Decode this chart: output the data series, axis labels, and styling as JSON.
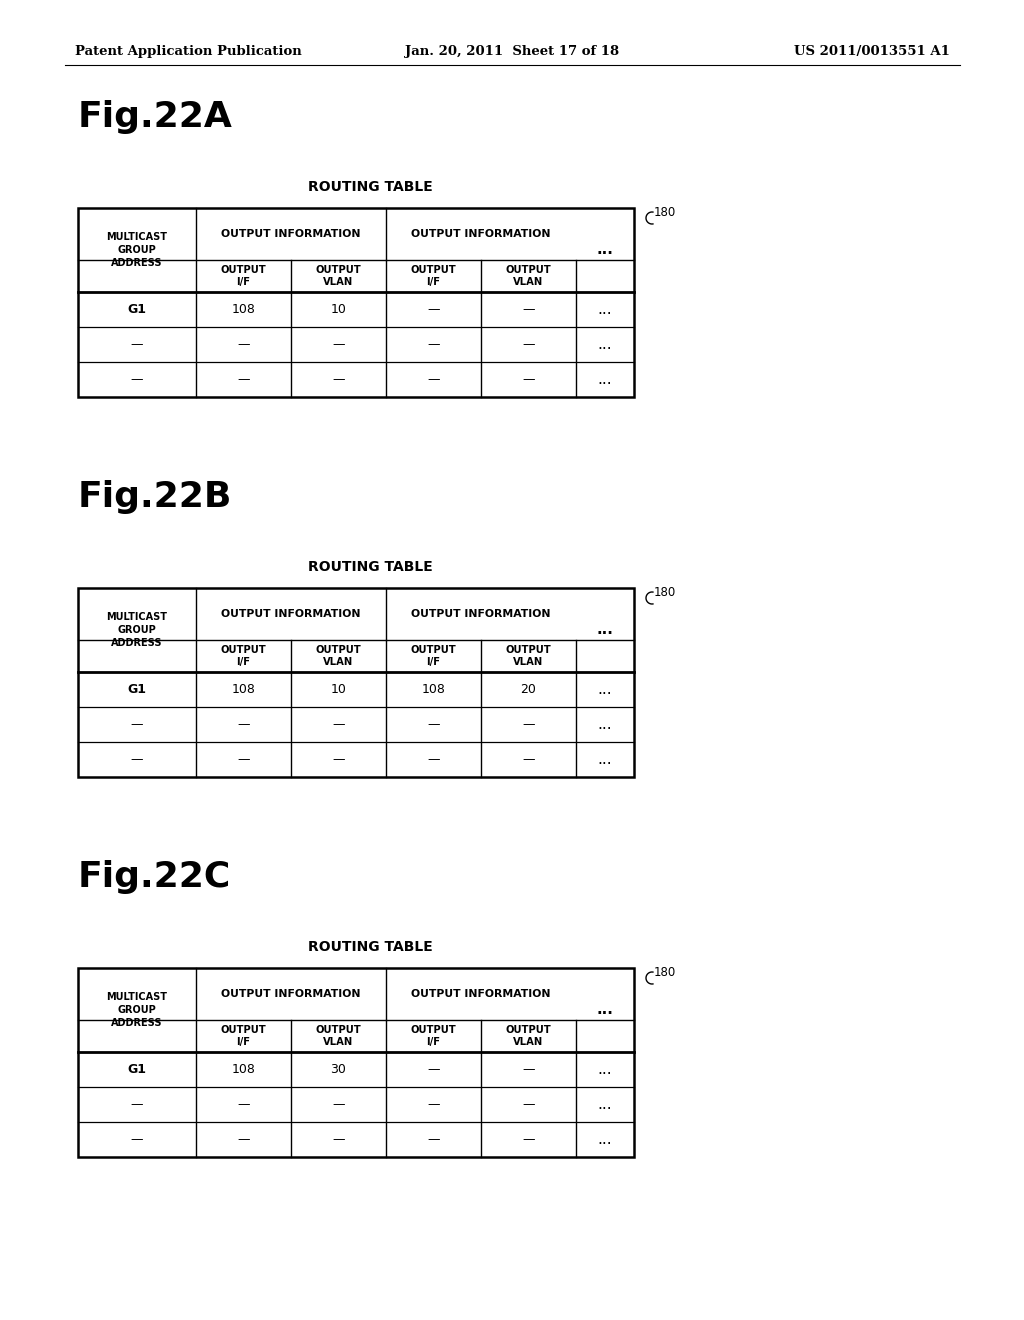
{
  "background_color": "#ffffff",
  "header_text_left": "Patent Application Publication",
  "header_text_mid": "Jan. 20, 2011  Sheet 17 of 18",
  "header_text_right": "US 2011/0013551 A1",
  "header_fontsize": 9.5,
  "figures": [
    {
      "label": "Fig.22A",
      "label_fontsize": 26,
      "table_title": "ROUTING TABLE",
      "table_title_fontsize": 10,
      "ref_label": "180",
      "data_rows": [
        [
          "G1",
          "108",
          "10",
          "—",
          "—"
        ],
        [
          "—",
          "—",
          "—",
          "—",
          "—"
        ],
        [
          "—",
          "—",
          "—",
          "—",
          "—"
        ]
      ]
    },
    {
      "label": "Fig.22B",
      "label_fontsize": 26,
      "table_title": "ROUTING TABLE",
      "table_title_fontsize": 10,
      "ref_label": "180",
      "data_rows": [
        [
          "G1",
          "108",
          "10",
          "108",
          "20"
        ],
        [
          "—",
          "—",
          "—",
          "—",
          "—"
        ],
        [
          "—",
          "—",
          "—",
          "—",
          "—"
        ]
      ]
    },
    {
      "label": "Fig.22C",
      "label_fontsize": 26,
      "table_title": "ROUTING TABLE",
      "table_title_fontsize": 10,
      "ref_label": "180",
      "data_rows": [
        [
          "G1",
          "108",
          "30",
          "—",
          "—"
        ],
        [
          "—",
          "—",
          "—",
          "—",
          "—"
        ],
        [
          "—",
          "—",
          "—",
          "—",
          "—"
        ]
      ]
    }
  ]
}
